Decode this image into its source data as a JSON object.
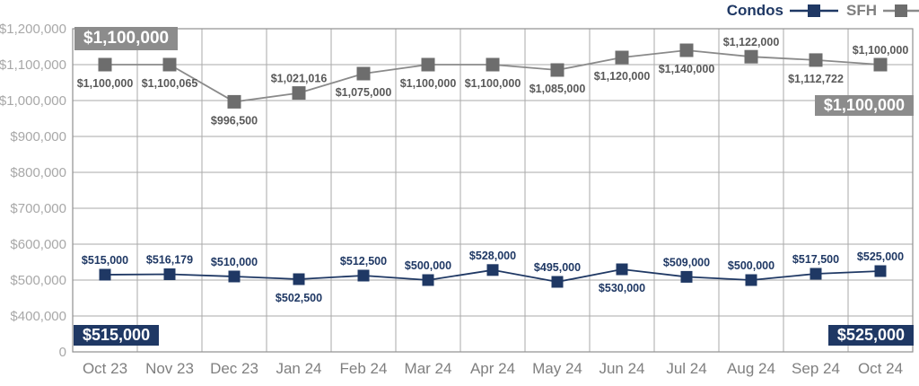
{
  "legend": {
    "items": [
      {
        "label": "Condos",
        "text_color": "#1f3864",
        "line_color": "#1f3864",
        "marker_color": "#1f3864"
      },
      {
        "label": "SFH",
        "text_color": "#7f7f7f",
        "line_color": "#8a8a8a",
        "marker_color": "#6d6d6d"
      }
    ]
  },
  "chart_data": {
    "type": "line",
    "categories": [
      "Oct 23",
      "Nov 23",
      "Dec 23",
      "Jan 24",
      "Feb 24",
      "Mar 24",
      "Apr 24",
      "May 24",
      "Jun 24",
      "Jul 24",
      "Aug 24",
      "Sep 24",
      "Oct 24"
    ],
    "y_axis": {
      "tick_labels": [
        "$1,200,000",
        "$1,100,000",
        "$1,000,000",
        "$900,000",
        "$800,000",
        "$700,000",
        "$600,000",
        "$500,000",
        "$400,000",
        "0"
      ],
      "tick_values": [
        1200000,
        1100000,
        1000000,
        900000,
        800000,
        700000,
        600000,
        500000,
        400000,
        0
      ],
      "broken_axis": true
    },
    "ylim": [
      0,
      1200000
    ],
    "grid": true,
    "legend_position": "top-right",
    "series": [
      {
        "name": "SFH",
        "line_color": "#8a8a8a",
        "marker_color": "#6d6d6d",
        "label_color": "#595959",
        "marker_size": 15,
        "values": [
          1100000,
          1100065,
          996500,
          1021016,
          1075000,
          1100000,
          1100000,
          1085000,
          1120000,
          1140000,
          1122000,
          1112722,
          1100000
        ],
        "labels": [
          "$1,100,000",
          "$1,100,065",
          "$996,500",
          "$1,021,016",
          "$1,075,000",
          "$1,100,000",
          "$1,100,000",
          "$1,085,000",
          "$1,120,000",
          "$1,140,000",
          "$1,122,000",
          "$1,112,722",
          "$1,100,000"
        ],
        "label_side": [
          "below",
          "below",
          "below",
          "above",
          "below",
          "below",
          "below",
          "below",
          "below",
          "below",
          "above",
          "below",
          "above"
        ]
      },
      {
        "name": "Condos",
        "line_color": "#1f3864",
        "marker_color": "#1f3864",
        "label_color": "#1f3864",
        "marker_size": 13,
        "values": [
          515000,
          516179,
          510000,
          502500,
          512500,
          500000,
          528000,
          495000,
          530000,
          509000,
          500000,
          517500,
          525000
        ],
        "labels": [
          "$515,000",
          "$516,179",
          "$510,000",
          "$502,500",
          "$512,500",
          "$500,000",
          "$528,000",
          "$495,000",
          "$530,000",
          "$509,000",
          "$500,000",
          "$517,500",
          "$525,000"
        ],
        "label_side": [
          "above",
          "above",
          "above",
          "below",
          "above",
          "above",
          "above",
          "above",
          "below",
          "above",
          "above",
          "above",
          "above"
        ]
      }
    ]
  },
  "badges": {
    "sfh_start": {
      "text": "$1,100,000",
      "bg": "#8c8c8c"
    },
    "sfh_end": {
      "text": "$1,100,000",
      "bg": "#8c8c8c"
    },
    "condos_start": {
      "text": "$515,000",
      "bg": "#1f3864"
    },
    "condos_end": {
      "text": "$525,000",
      "bg": "#1f3864"
    }
  },
  "colors": {
    "grid": "#aaaaaa",
    "plot_border": "#8f8f8f",
    "y_axis_text": "#a8a8a8",
    "x_axis_text": "#7f7f7f",
    "condos_navy": "#1f3864",
    "sfh_gray": "#6d6d6d",
    "badge_gray": "#8c8c8c"
  }
}
